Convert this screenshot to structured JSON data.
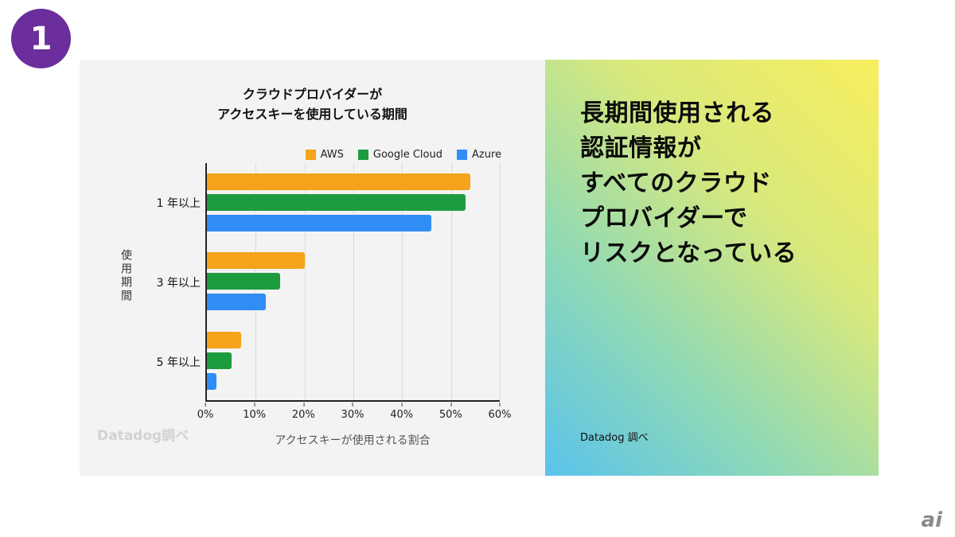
{
  "slide": {
    "number": "1",
    "brand_logo": "ai"
  },
  "chart_data": {
    "type": "bar",
    "orientation": "horizontal",
    "title": "クラウドプロバイダーがアクセスキーを使用している期間",
    "title_lines": [
      "クラウドプロバイダーが",
      "アクセスキーを使用している期間"
    ],
    "categories": [
      "1 年以上",
      "3 年以上",
      "5 年以上"
    ],
    "series": [
      {
        "name": "AWS",
        "color": "#F5A31B",
        "values": [
          54,
          20,
          7
        ]
      },
      {
        "name": "Google Cloud",
        "color": "#1D9C3F",
        "values": [
          53,
          15,
          5
        ]
      },
      {
        "name": "Azure",
        "color": "#2F8DF5",
        "values": [
          46,
          12,
          2
        ]
      }
    ],
    "x_ticks": [
      "0%",
      "10%",
      "20%",
      "30%",
      "40%",
      "50%",
      "60%"
    ],
    "xlim": [
      0,
      60
    ],
    "xlabel": "アクセスキーが使用される割合",
    "ylabel": "使用期間",
    "legend_position": "top",
    "grid": true,
    "watermark": "Datadog調べ"
  },
  "right_panel": {
    "headline_lines": [
      "長期間使用される",
      "認証情報が",
      "すべてのクラウド",
      "プロバイダーで",
      "リスクとなっている"
    ],
    "source": "Datadog 調べ"
  }
}
